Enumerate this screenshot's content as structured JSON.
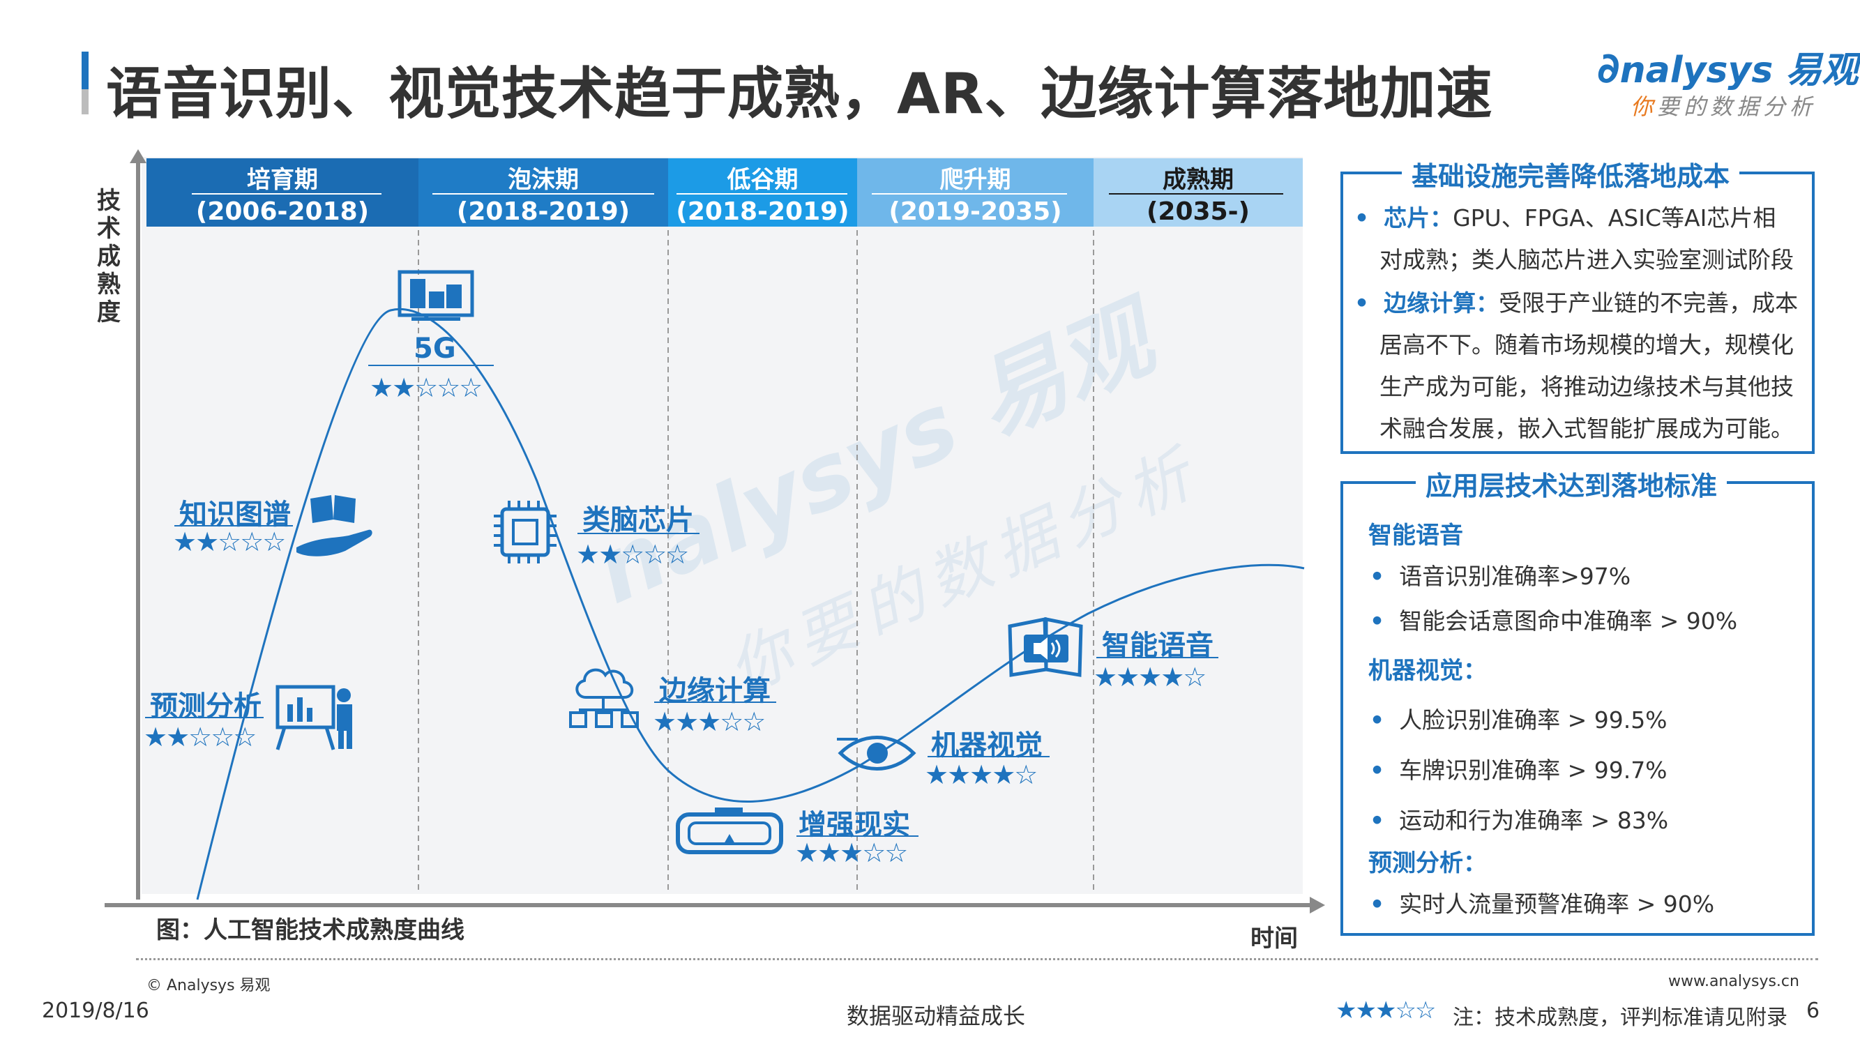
{
  "header": {
    "title": "语音识别、视觉技术趋于成熟，AR、边缘计算落地加速",
    "logo_main": "nalysys 易观",
    "logo_sub_orange": "你",
    "logo_sub_rest": "要的数据分析"
  },
  "chart": {
    "y_axis_label": "技术成熟度",
    "x_axis_label": "时间",
    "caption": "图：人工智能技术成熟度曲线",
    "watermark_main": "nalysys 易观",
    "watermark_sub": "你要的数据分析",
    "phases": [
      {
        "name": "培育期",
        "years": "(2006-2018)",
        "color": "#1b6cb3"
      },
      {
        "name": "泡沫期",
        "years": "(2018-2019)",
        "color": "#1f7cc6"
      },
      {
        "name": "低谷期",
        "years": "(2018-2019)",
        "color": "#1c9be6"
      },
      {
        "name": "爬升期",
        "years": "(2019-2035)",
        "color": "#6fb7ea"
      },
      {
        "name": "成熟期",
        "years": "(2035-)",
        "color": "#a9d4f3"
      }
    ],
    "items": [
      {
        "label": "5G",
        "rating": 2,
        "icon": "smart-city-icon"
      },
      {
        "label": "知识图谱",
        "rating": 2,
        "icon": "book-hand-icon"
      },
      {
        "label": "预测分析",
        "rating": 2,
        "icon": "presenter-chart-icon"
      },
      {
        "label": "类脑芯片",
        "rating": 2,
        "icon": "chip-icon"
      },
      {
        "label": "边缘计算",
        "rating": 3,
        "icon": "cloud-network-icon"
      },
      {
        "label": "增强现实",
        "rating": 3,
        "icon": "vr-headset-icon"
      },
      {
        "label": "机器视觉",
        "rating": 4,
        "icon": "eye-icon"
      },
      {
        "label": "智能语音",
        "rating": 4,
        "icon": "audio-book-icon"
      }
    ]
  },
  "panel_infra": {
    "title": "基础设施完善降低落地成本",
    "b1_head": "芯片：",
    "b1_line1": "GPU、FPGA、ASIC等AI芯片相",
    "b1_line2": "对成熟；类人脑芯片进入实验室测试阶段",
    "b2_head": "边缘计算：",
    "b2_line1": "受限于产业链的不完善，成本",
    "b2_line2": "居高不下。随着市场规模的增大，规模化",
    "b2_line3": "生产成为可能，将推动边缘技术与其他技",
    "b2_line4": "术融合发展，嵌入式智能扩展成为可能。"
  },
  "panel_app": {
    "title": "应用层技术达到落地标准",
    "h1": "智能语音",
    "i1": "语音识别准确率>97%",
    "i2": "智能会话意图命中准确率 > 90%",
    "h2": "机器视觉：",
    "i3": "人脸识别准确率 >  99.5%",
    "i4": "车牌识别准确率 >  99.7%",
    "i5": "运动和行为准确率 >  83%",
    "h3": "预测分析：",
    "i6": "实时人流量预警准确率 >  90%"
  },
  "footer": {
    "copyright": "© Analysys 易观",
    "website": "www.analysys.cn",
    "date": "2019/8/16",
    "slogan": "数据驱动精益成长",
    "note_rating": 3,
    "note": "注：技术成熟度，评判标准请见附录",
    "page": "6"
  }
}
